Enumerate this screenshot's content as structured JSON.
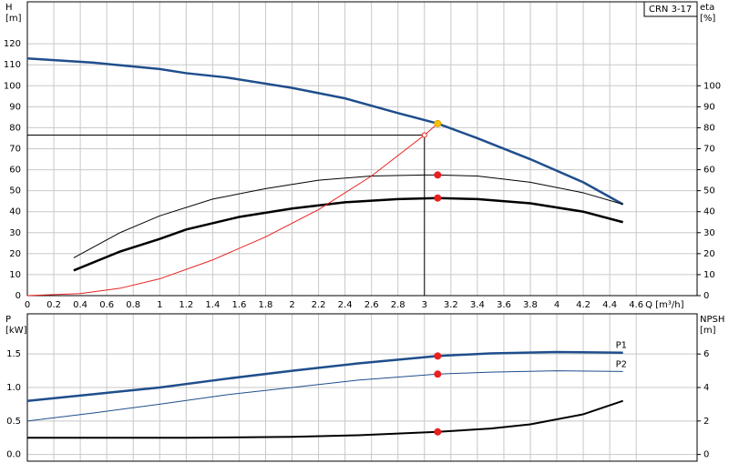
{
  "chart_data": [
    {
      "type": "line",
      "annotation": "CRN 3-17",
      "ylabel": "H",
      "yunit": "[m]",
      "y2label": "eta",
      "y2unit": "[%]",
      "xlabel": "Q [m³/h]",
      "xlim": [
        0,
        5.06
      ],
      "xticks": [
        0,
        0.2,
        0.4,
        0.6,
        0.8,
        1.0,
        1.2,
        1.4,
        1.6,
        1.8,
        2.0,
        2.2,
        2.4,
        2.6,
        2.8,
        3.0,
        3.2,
        3.4,
        3.6,
        3.8,
        4.0,
        4.2,
        4.4,
        4.6
      ],
      "ylim": [
        0,
        140
      ],
      "yticks": [
        0,
        10,
        20,
        30,
        40,
        50,
        60,
        70,
        80,
        90,
        100,
        110,
        120
      ],
      "y2lim": [
        0,
        140
      ],
      "y2ticks": [
        0,
        10,
        20,
        30,
        40,
        50,
        60,
        70,
        80,
        90,
        100
      ],
      "grid": true,
      "series": [
        {
          "color": "#1f4e8c",
          "width": 2.5,
          "x": [
            0,
            0.5,
            1.0,
            1.2,
            1.5,
            2.0,
            2.4,
            2.8,
            3.1,
            3.4,
            3.8,
            4.2,
            4.5
          ],
          "values": [
            113,
            111,
            108,
            106,
            104,
            99,
            94,
            87,
            82,
            75,
            65,
            54,
            43.5
          ]
        },
        {
          "color": "#000000",
          "width": 1,
          "axis": "y2",
          "x": [
            0.35,
            0.7,
            1.0,
            1.4,
            1.8,
            2.2,
            2.6,
            3.0,
            3.1,
            3.4,
            3.8,
            4.2,
            4.5
          ],
          "values": [
            18,
            30,
            38,
            46,
            51,
            55,
            57,
            57.5,
            57.5,
            57,
            54,
            49,
            43.5
          ]
        },
        {
          "color": "#000000",
          "width": 2.5,
          "axis": "y2",
          "x": [
            0.35,
            0.7,
            1.0,
            1.2,
            1.6,
            2.0,
            2.4,
            2.8,
            3.1,
            3.4,
            3.8,
            4.2,
            4.5
          ],
          "values": [
            12,
            21,
            27,
            31.5,
            37.5,
            41.5,
            44.5,
            46,
            46.5,
            46,
            44,
            40,
            35
          ]
        },
        {
          "color": "#e82020",
          "width": 1,
          "x": [
            0,
            0.4,
            0.7,
            1.0,
            1.4,
            1.8,
            2.2,
            2.6,
            3.0,
            3.1
          ],
          "values": [
            0,
            1,
            3.5,
            8,
            17,
            28,
            41,
            57,
            76.5,
            82
          ]
        }
      ],
      "reference": {
        "x": 3.0,
        "y": 76.5
      },
      "points": [
        {
          "x": 3.1,
          "y": 82,
          "color": "#f5c400"
        },
        {
          "x": 3.0,
          "y": 76.5,
          "color": "#e82020",
          "hollow": true
        },
        {
          "x": 3.1,
          "y": 57.5,
          "color": "#e82020"
        },
        {
          "x": 3.1,
          "y": 46.5,
          "color": "#e82020"
        }
      ]
    },
    {
      "type": "line",
      "ylabel": "P",
      "yunit": "[kW]",
      "y2label": "NPSH",
      "y2unit": "[m]",
      "xlim": [
        0,
        5.06
      ],
      "ylim": [
        -0.1,
        2.1
      ],
      "yticks": [
        {
          "value": 0,
          "label": "0.0"
        },
        0.5,
        {
          "value": 1,
          "label": "1.0"
        },
        1.5
      ],
      "y2lim": [
        -0.4,
        8.4
      ],
      "y2ticks": [
        0,
        2,
        4,
        6
      ],
      "grid": true,
      "series": [
        {
          "name": "P1",
          "color": "#1f4e8c",
          "width": 2.5,
          "x": [
            0,
            0.5,
            1.0,
            1.5,
            2.0,
            2.5,
            3.1,
            3.5,
            4.0,
            4.5
          ],
          "values": [
            0.8,
            0.9,
            1.0,
            1.13,
            1.25,
            1.36,
            1.47,
            1.51,
            1.53,
            1.52
          ]
        },
        {
          "name": "P2",
          "color": "#1f4e8c",
          "width": 1,
          "x": [
            0,
            0.5,
            1.0,
            1.5,
            2.0,
            2.5,
            3.1,
            3.5,
            4.0,
            4.5
          ],
          "values": [
            0.5,
            0.62,
            0.75,
            0.89,
            1.0,
            1.11,
            1.2,
            1.23,
            1.25,
            1.24
          ]
        },
        {
          "color": "#000000",
          "width": 2,
          "axis": "y2",
          "x": [
            0,
            0.7,
            1.2,
            2.0,
            2.5,
            3.1,
            3.5,
            3.8,
            4.2,
            4.5
          ],
          "values": [
            1.0,
            1.0,
            1.0,
            1.05,
            1.15,
            1.35,
            1.55,
            1.8,
            2.4,
            3.2
          ]
        }
      ],
      "points": [
        {
          "x": 3.1,
          "y": 1.47,
          "color": "#e82020"
        },
        {
          "x": 3.1,
          "y": 1.2,
          "color": "#e82020"
        },
        {
          "x": 3.1,
          "y": 1.35,
          "color": "#e82020",
          "axis": "y2"
        }
      ]
    }
  ]
}
